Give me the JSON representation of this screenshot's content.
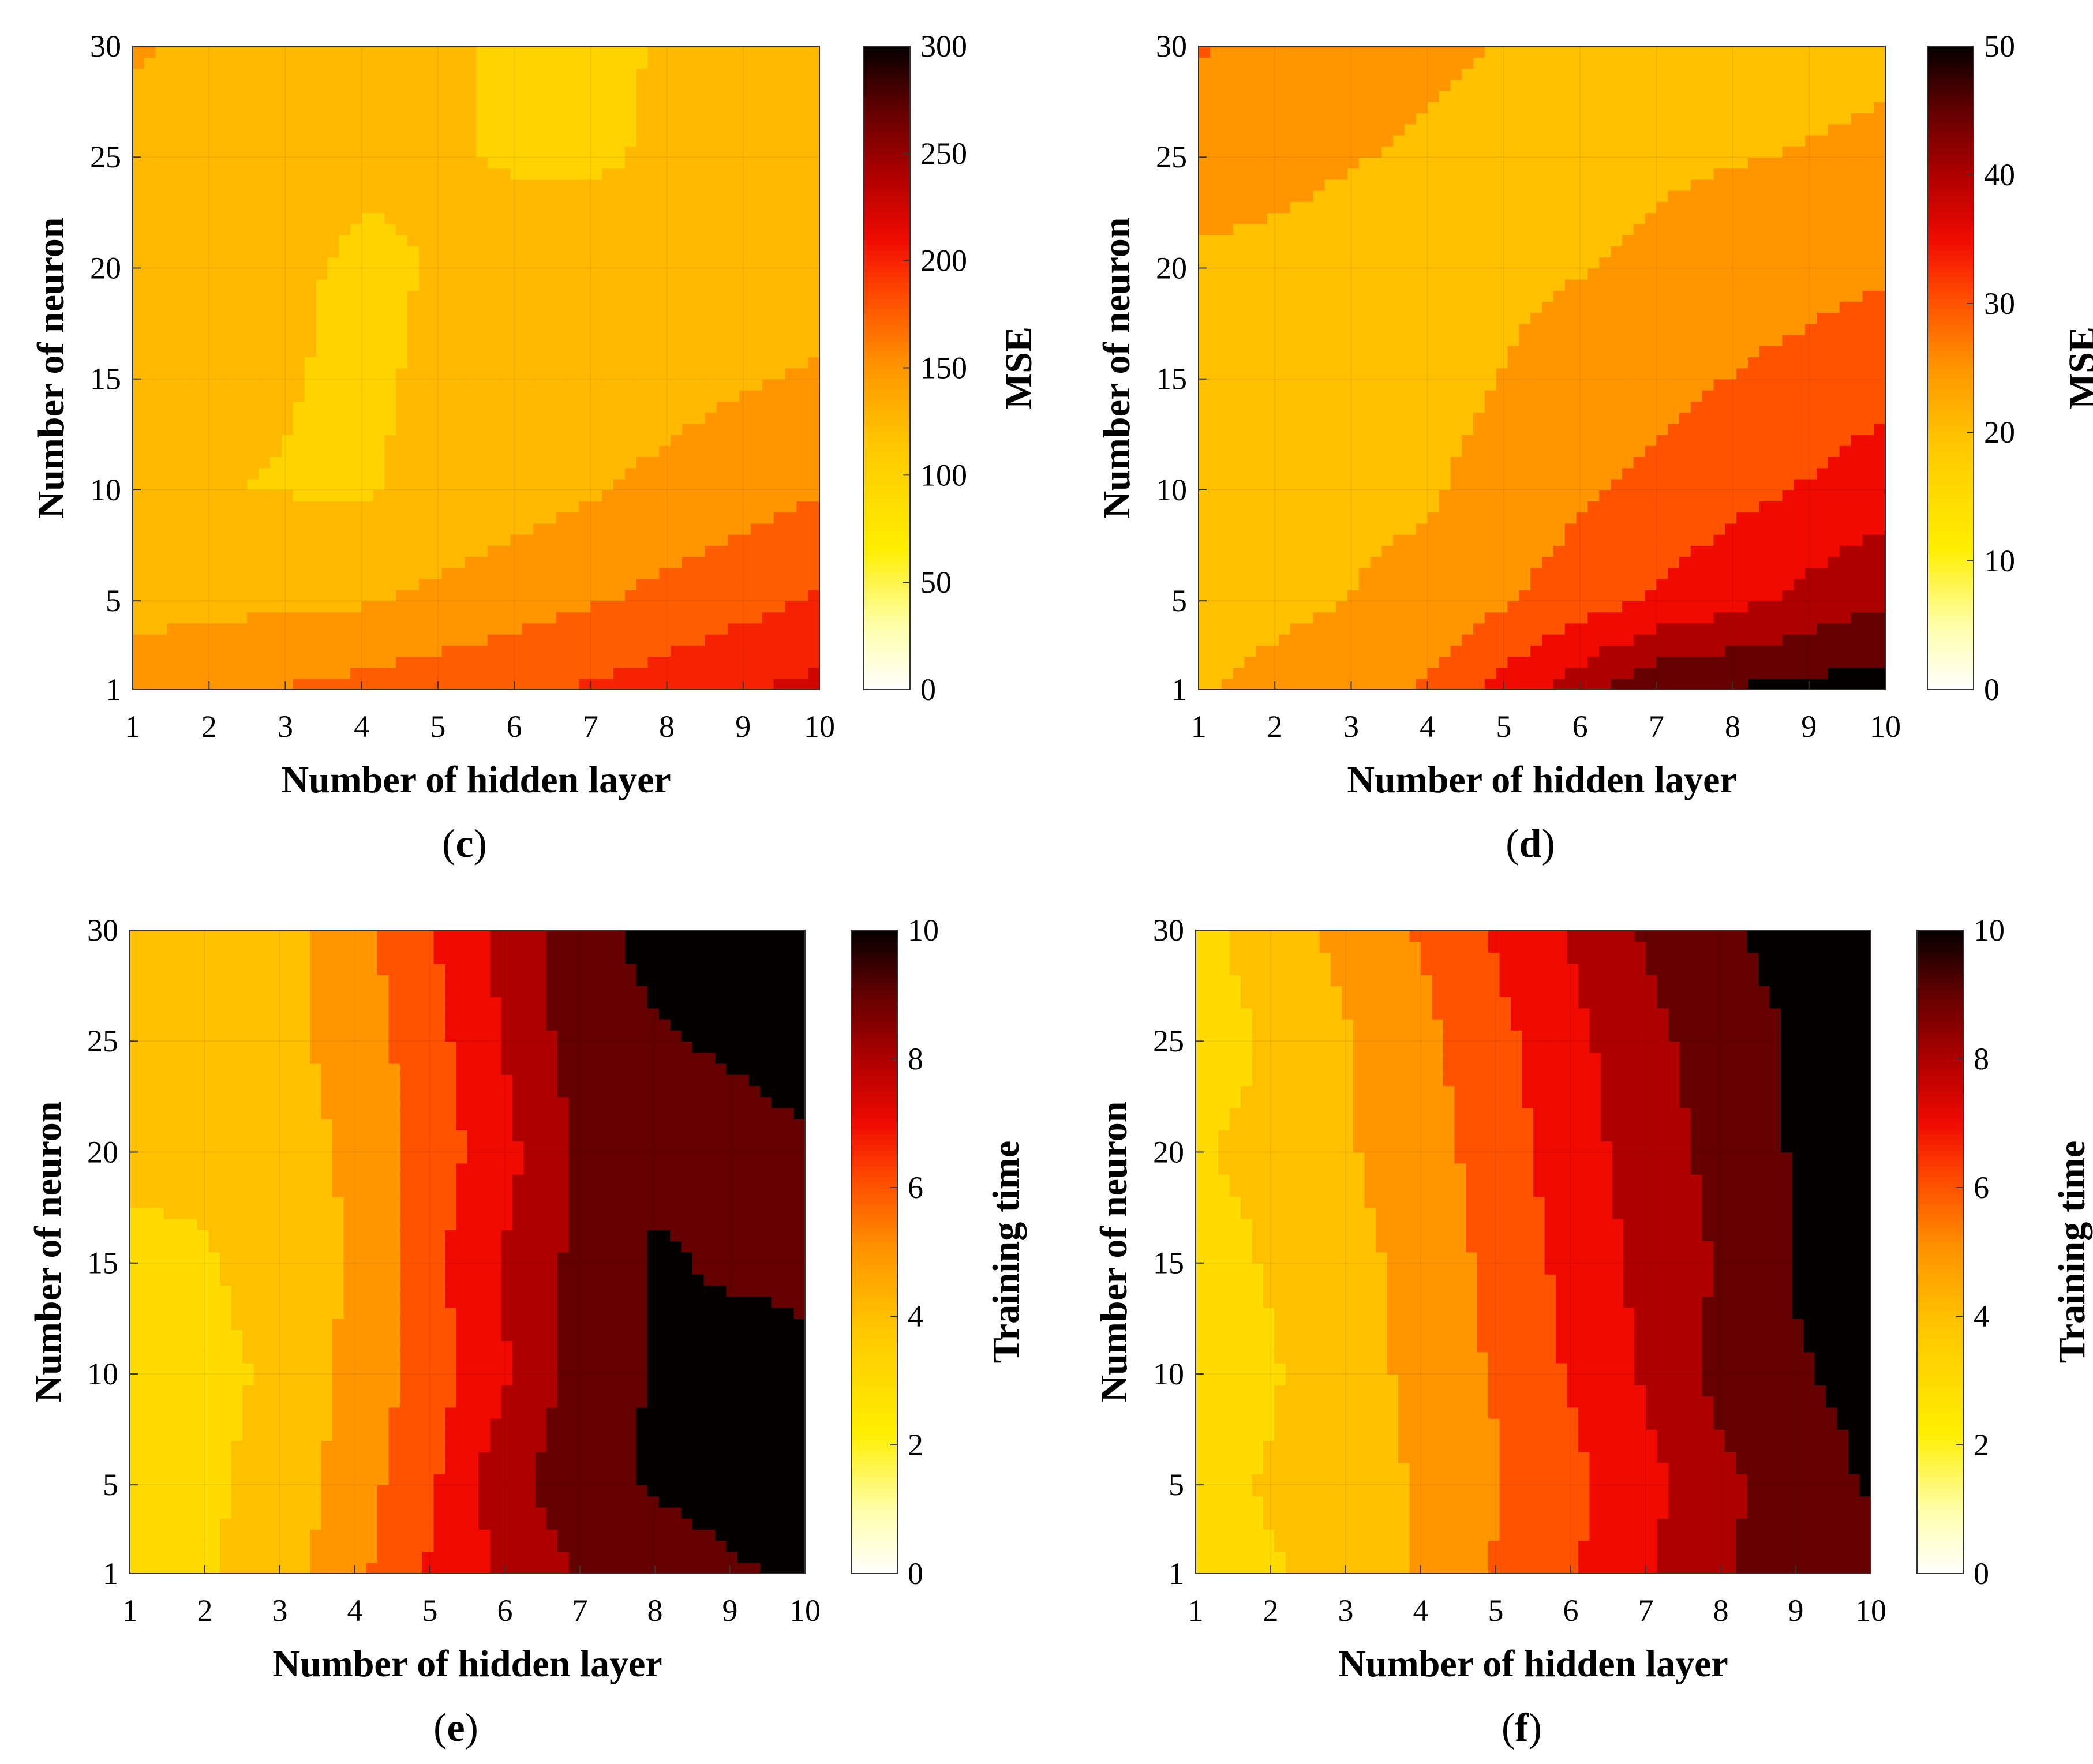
{
  "figure": {
    "panels": [
      {
        "letter": "c"
      },
      {
        "letter": "d"
      },
      {
        "letter": "e"
      },
      {
        "letter": "f"
      }
    ]
  },
  "chart_data": [
    {
      "type": "heatmap",
      "subtype": "filled-contour",
      "panel": "(c)",
      "xlabel": "Number of hidden layer",
      "ylabel": "Number of neuron",
      "colorbar_label": "MSE",
      "xlim": [
        1,
        10
      ],
      "ylim": [
        1,
        30
      ],
      "clim": [
        0,
        300
      ],
      "x_ticks": [
        1,
        2,
        3,
        4,
        5,
        6,
        7,
        8,
        9,
        10
      ],
      "y_ticks": [
        1,
        5,
        10,
        15,
        20,
        25,
        30
      ],
      "colorbar_ticks": [
        0,
        50,
        100,
        150,
        200,
        250,
        300
      ],
      "x_grid": [
        1,
        4,
        7,
        10
      ],
      "y_grid": [
        1,
        5,
        10,
        15,
        20,
        25,
        30
      ],
      "z": [
        [
          150,
          170,
          190,
          220
        ],
        [
          130,
          135,
          160,
          190
        ],
        [
          115,
          110,
          135,
          160
        ],
        [
          120,
          110,
          125,
          140
        ],
        [
          125,
          110,
          120,
          130
        ],
        [
          130,
          115,
          110,
          125
        ],
        [
          140,
          115,
          110,
          120
        ]
      ],
      "colormap": "hot"
    },
    {
      "type": "heatmap",
      "subtype": "filled-contour",
      "panel": "(d)",
      "xlabel": "Number of hidden layer",
      "ylabel": "Number of neuron",
      "colorbar_label": "MSE",
      "xlim": [
        1,
        10
      ],
      "ylim": [
        1,
        30
      ],
      "clim": [
        0,
        50
      ],
      "x_ticks": [
        1,
        2,
        3,
        4,
        5,
        6,
        7,
        8,
        9,
        10
      ],
      "y_ticks": [
        1,
        5,
        10,
        15,
        20,
        25,
        30
      ],
      "colorbar_ticks": [
        0,
        10,
        20,
        30,
        40,
        50
      ],
      "x_grid": [
        1,
        4,
        7,
        10
      ],
      "y_grid": [
        1,
        5,
        10,
        15,
        20,
        25,
        30
      ],
      "z": [
        [
          22,
          28,
          47,
          50
        ],
        [
          20,
          24,
          33,
          42
        ],
        [
          20,
          22,
          29,
          35
        ],
        [
          19,
          21,
          26,
          31
        ],
        [
          22,
          21,
          23,
          27
        ],
        [
          24,
          22,
          22,
          23
        ],
        [
          28,
          23,
          21,
          22
        ]
      ],
      "colormap": "hot"
    },
    {
      "type": "heatmap",
      "subtype": "filled-contour",
      "panel": "(e)",
      "xlabel": "Number of hidden layer",
      "ylabel": "Number of neuron",
      "colorbar_label": "Training time",
      "xlim": [
        1,
        10
      ],
      "ylim": [
        1,
        30
      ],
      "clim": [
        0,
        10
      ],
      "x_ticks": [
        1,
        2,
        3,
        4,
        5,
        6,
        7,
        8,
        9,
        10
      ],
      "y_ticks": [
        1,
        5,
        10,
        15,
        20,
        25,
        30
      ],
      "colorbar_ticks": [
        0,
        2,
        4,
        6,
        8,
        10
      ],
      "x_grid": [
        1,
        2,
        3,
        4,
        5,
        6,
        7,
        8,
        9,
        10
      ],
      "y_grid": [
        1,
        5,
        10,
        15,
        20,
        25,
        30
      ],
      "z": [
        [
          3.2,
          3.4,
          4.0,
          5.2,
          6.6,
          7.6,
          8.6,
          9.0,
          9.4,
          9.6
        ],
        [
          3.1,
          3.3,
          3.9,
          5.0,
          6.3,
          8.2,
          9.1,
          9.6,
          9.8,
          10.0
        ],
        [
          3.0,
          3.2,
          3.7,
          4.8,
          6.0,
          7.4,
          9.0,
          9.6,
          9.8,
          9.6
        ],
        [
          3.2,
          3.4,
          3.9,
          4.6,
          6.2,
          7.6,
          8.8,
          9.6,
          9.4,
          9.4
        ],
        [
          3.8,
          3.7,
          4.0,
          4.7,
          5.9,
          7.2,
          8.6,
          9.3,
          9.2,
          9.4
        ],
        [
          4.2,
          3.9,
          4.2,
          4.9,
          6.1,
          7.6,
          9.0,
          9.4,
          9.6,
          9.8
        ],
        [
          4.4,
          4.0,
          4.1,
          5.1,
          6.4,
          7.8,
          9.2,
          9.8,
          10.0,
          9.8
        ]
      ],
      "colormap": "hot"
    },
    {
      "type": "heatmap",
      "subtype": "filled-contour",
      "panel": "(f)",
      "xlabel": "Number of hidden layer",
      "ylabel": "Number of neuron",
      "colorbar_label": "Training time",
      "xlim": [
        1,
        10
      ],
      "ylim": [
        1,
        30
      ],
      "clim": [
        0,
        10
      ],
      "x_ticks": [
        1,
        2,
        3,
        4,
        5,
        6,
        7,
        8,
        9,
        10
      ],
      "y_ticks": [
        1,
        5,
        10,
        15,
        20,
        25,
        30
      ],
      "colorbar_ticks": [
        0,
        2,
        4,
        6,
        8,
        10
      ],
      "x_grid": [
        1,
        2,
        3,
        4,
        5,
        6,
        7,
        8,
        9,
        10
      ],
      "y_grid": [
        1,
        5,
        10,
        15,
        20,
        25,
        30
      ],
      "z": [
        [
          3.0,
          3.4,
          3.8,
          4.6,
          5.6,
          6.4,
          7.4,
          8.4,
          9.2,
          9.0
        ],
        [
          3.2,
          3.6,
          4.0,
          4.6,
          5.4,
          6.2,
          7.2,
          8.2,
          9.0,
          9.6
        ],
        [
          2.8,
          3.4,
          4.0,
          4.8,
          5.6,
          6.6,
          7.6,
          8.8,
          9.4,
          9.8
        ],
        [
          3.0,
          3.6,
          4.2,
          4.8,
          5.8,
          6.8,
          7.8,
          8.6,
          9.6,
          9.8
        ],
        [
          3.4,
          3.8,
          4.4,
          5.0,
          6.0,
          7.0,
          8.0,
          8.8,
          9.6,
          9.8
        ],
        [
          3.0,
          3.6,
          4.4,
          5.2,
          6.2,
          7.2,
          8.2,
          9.0,
          9.6,
          9.8
        ],
        [
          3.2,
          4.0,
          4.8,
          5.6,
          6.6,
          7.6,
          8.6,
          9.4,
          9.8,
          9.8
        ]
      ],
      "colormap": "hot"
    }
  ]
}
